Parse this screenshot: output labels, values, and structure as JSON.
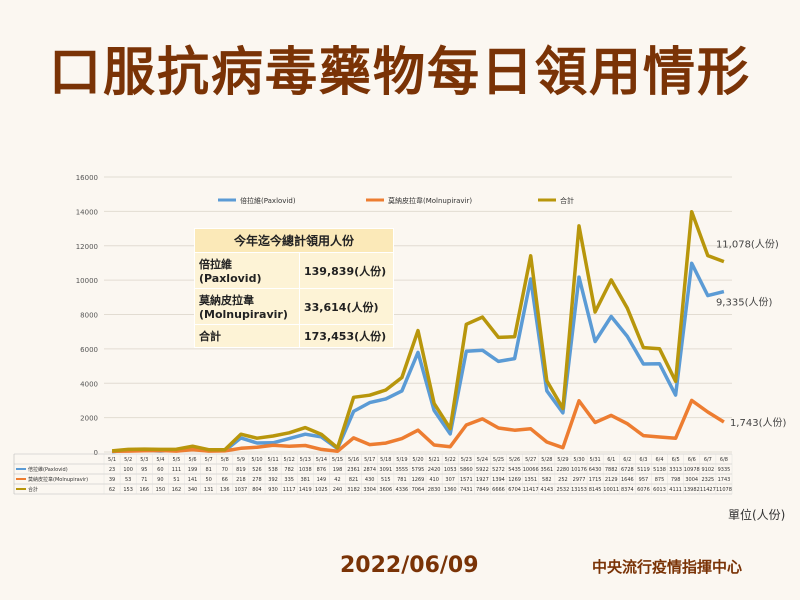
{
  "title": "口服抗病毒藥物每日領用情形",
  "date": "2022/06/09",
  "org": "中央流行疫情指揮中心",
  "unit": "單位(人份)",
  "summary": {
    "header": "今年迄今總計領用人份",
    "rows": [
      {
        "label": "倍拉維\n(Paxlovid)",
        "value": "139,839(人份)"
      },
      {
        "label": "莫納皮拉韋\n(Molnupiravir)",
        "value": "33,614(人份)"
      },
      {
        "label": "合計",
        "value": "173,453(人份)"
      }
    ]
  },
  "end_labels": {
    "total": "11,078(人份)",
    "paxlovid": "9,335(人份)",
    "molnupiravir": "1,743(人份)"
  },
  "chart_data": {
    "type": "line",
    "ylim": [
      0,
      16000
    ],
    "yticks": [
      0,
      2000,
      4000,
      6000,
      8000,
      10000,
      12000,
      14000,
      16000
    ],
    "grid": true,
    "legend_position": "top",
    "categories": [
      "5/1",
      "5/2",
      "5/3",
      "5/4",
      "5/5",
      "5/6",
      "5/7",
      "5/8",
      "5/9",
      "5/10",
      "5/11",
      "5/12",
      "5/13",
      "5/14",
      "5/15",
      "5/16",
      "5/17",
      "5/18",
      "5/19",
      "5/20",
      "5/21",
      "5/22",
      "5/23",
      "5/24",
      "5/25",
      "5/26",
      "5/27",
      "5/28",
      "5/29",
      "5/30",
      "5/31",
      "6/1",
      "6/2",
      "6/3",
      "6/4",
      "6/5",
      "6/6",
      "6/7",
      "6/8"
    ],
    "series": [
      {
        "name": "倍拉維(Paxlovid)",
        "color": "#5b9bd5",
        "values": [
          23,
          100,
          95,
          60,
          111,
          199,
          81,
          70,
          819,
          526,
          538,
          782,
          1038,
          876,
          198,
          2361,
          2874,
          3091,
          3555,
          5795,
          2420,
          1053,
          5860,
          5922,
          5272,
          5435,
          10066,
          3561,
          2280,
          10176,
          6430,
          7882,
          6728,
          5119,
          5138,
          3313,
          10978,
          9102,
          9335
        ]
      },
      {
        "name": "莫納皮拉韋(Molnupiravir)",
        "color": "#ed7d31",
        "values": [
          39,
          53,
          71,
          90,
          51,
          141,
          50,
          66,
          218,
          278,
          392,
          335,
          381,
          149,
          42,
          821,
          430,
          515,
          781,
          1269,
          410,
          307,
          1571,
          1927,
          1394,
          1269,
          1351,
          582,
          252,
          2977,
          1715,
          2129,
          1646,
          957,
          875,
          798,
          3004,
          2325,
          1743
        ]
      },
      {
        "name": "合計",
        "color": "#b8960c",
        "values": [
          62,
          153,
          166,
          150,
          162,
          340,
          131,
          136,
          1037,
          804,
          930,
          1117,
          1419,
          1025,
          240,
          3182,
          3304,
          3606,
          4336,
          7064,
          2830,
          1360,
          7431,
          7849,
          6666,
          6704,
          11417,
          4143,
          2532,
          13153,
          8145,
          10011,
          8374,
          6076,
          6013,
          4111,
          13982,
          11427,
          11078
        ]
      }
    ]
  }
}
